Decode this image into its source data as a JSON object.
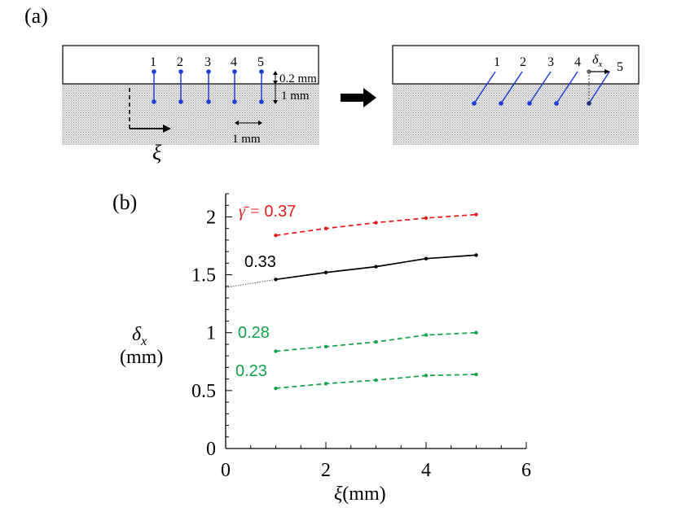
{
  "panel_a": {
    "label": "(a)",
    "left_numbers": [
      "1",
      "2",
      "3",
      "4",
      "5"
    ],
    "right_numbers": [
      "1",
      "2",
      "3",
      "4",
      "5"
    ],
    "dim_top": "0.2 mm",
    "dim_side": "1 mm",
    "dim_bottom": "1 mm",
    "axis_symbol": "ξ",
    "delta_symbol": "δ",
    "delta_subscript": "x",
    "colors": {
      "pin": "#1f3fd6",
      "substrate": "#c8c8c8",
      "arrow": "#000000"
    }
  },
  "chart_data": {
    "panel_label": "(b)",
    "type": "line",
    "xlabel": "ξ(mm)",
    "xlabel_symbol": "ξ",
    "xlabel_unit": "(mm)",
    "ylabel_symbol": "δ",
    "ylabel_subscript": "x",
    "ylabel_unit": "(mm)",
    "xlim": [
      0,
      6
    ],
    "ylim": [
      0,
      2.2
    ],
    "xticks": [
      0,
      2,
      4,
      6
    ],
    "yticks": [
      0,
      0.5,
      1,
      1.5,
      2
    ],
    "xtick_labels": [
      "0",
      "2",
      "4",
      "6"
    ],
    "ytick_labels": [
      "0",
      "0.5",
      "1",
      "1.5",
      "2"
    ],
    "series": [
      {
        "name": "0.37",
        "label_prefix": "γ̄ = ",
        "label": "0.37",
        "color": "#e8191b",
        "dash": "6,4",
        "x": [
          1,
          2,
          3,
          4,
          5
        ],
        "values": [
          1.84,
          1.9,
          1.95,
          1.99,
          2.02
        ]
      },
      {
        "name": "0.33",
        "label": "0.33",
        "color": "#000000",
        "dash": "",
        "x": [
          1,
          2,
          3,
          4,
          5
        ],
        "values": [
          1.46,
          1.52,
          1.57,
          1.64,
          1.67
        ],
        "extrapolation": {
          "x": [
            0,
            1
          ],
          "values": [
            1.39,
            1.46
          ]
        }
      },
      {
        "name": "0.28",
        "label": "0.28",
        "color": "#12a34a",
        "dash": "6,4",
        "x": [
          1,
          2,
          3,
          4,
          5
        ],
        "values": [
          0.84,
          0.88,
          0.92,
          0.98,
          1.0
        ]
      },
      {
        "name": "0.23",
        "label": "0.23",
        "color": "#12a34a",
        "dash": "6,4",
        "x": [
          1,
          2,
          3,
          4,
          5
        ],
        "values": [
          0.52,
          0.56,
          0.59,
          0.63,
          0.64
        ]
      }
    ]
  }
}
